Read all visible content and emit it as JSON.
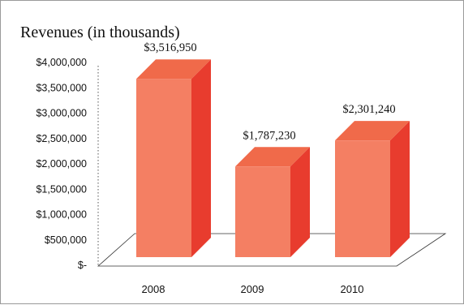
{
  "chart_data": {
    "type": "bar",
    "title": "Revenues (in thousands)",
    "xlabel": "",
    "ylabel": "",
    "categories": [
      "2008",
      "2009",
      "2010"
    ],
    "values": [
      3516950,
      1787230,
      2301240
    ],
    "data_labels": [
      "$3,516,950",
      "$1,787,230",
      "$2,301,240"
    ],
    "ylim": [
      0,
      4000000
    ],
    "yticks": [
      0,
      500000,
      1000000,
      1500000,
      2000000,
      2500000,
      3000000,
      3500000,
      4000000
    ],
    "ytick_labels": [
      "$-",
      "$500,000",
      "$1,000,000",
      "$1,500,000",
      "$2,000,000",
      "$2,500,000",
      "$3,000,000",
      "$3,500,000",
      "$4,000,000"
    ],
    "grid": false,
    "legend": "none",
    "colors": {
      "bar_front": "#F47F63",
      "bar_side": "#E83C2E",
      "bar_top": "#F06A4A"
    }
  }
}
